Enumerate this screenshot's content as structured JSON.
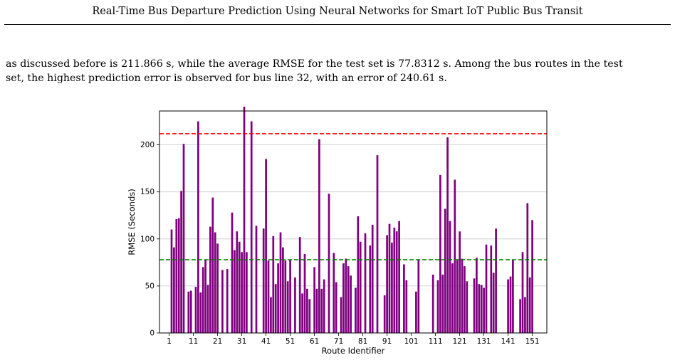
{
  "header": {
    "title": "Real-Time Bus Departure Prediction Using Neural Networks for Smart IoT Public Bus Transit"
  },
  "paragraph": {
    "line1": "as discussed before is 211.866 s, while the average RMSE for the test set is 77.8312 s. Among the bus routes in the test",
    "line2": "set, the highest prediction error is observed for bus line 32, with an error of 240.61 s."
  },
  "chart_data": {
    "type": "bar",
    "xlabel": "Route Identifier",
    "ylabel": "RMSE (Seconds)",
    "xlim": [
      -3,
      157
    ],
    "ylim": [
      0,
      236
    ],
    "xticks": [
      1,
      11,
      21,
      31,
      41,
      51,
      61,
      71,
      81,
      91,
      101,
      111,
      121,
      131,
      141,
      151
    ],
    "yticks": [
      0,
      50,
      100,
      150,
      200
    ],
    "grid": "horizontal",
    "bar_color": "#800080",
    "reference_lines": [
      {
        "value": 211.866,
        "color": "#ff0000",
        "style": "dashed"
      },
      {
        "value": 77.8312,
        "color": "#008000",
        "style": "dashed"
      }
    ],
    "bars": [
      {
        "x": 2,
        "y": 110
      },
      {
        "x": 3,
        "y": 91
      },
      {
        "x": 4,
        "y": 121
      },
      {
        "x": 5,
        "y": 122
      },
      {
        "x": 6,
        "y": 151
      },
      {
        "x": 7,
        "y": 201
      },
      {
        "x": 9,
        "y": 44
      },
      {
        "x": 10,
        "y": 45
      },
      {
        "x": 12,
        "y": 49
      },
      {
        "x": 13,
        "y": 225
      },
      {
        "x": 14,
        "y": 43
      },
      {
        "x": 15,
        "y": 70
      },
      {
        "x": 16,
        "y": 78
      },
      {
        "x": 17,
        "y": 51
      },
      {
        "x": 18,
        "y": 113
      },
      {
        "x": 19,
        "y": 144
      },
      {
        "x": 20,
        "y": 107
      },
      {
        "x": 21,
        "y": 95
      },
      {
        "x": 23,
        "y": 67
      },
      {
        "x": 25,
        "y": 68
      },
      {
        "x": 27,
        "y": 128
      },
      {
        "x": 28,
        "y": 88
      },
      {
        "x": 29,
        "y": 108
      },
      {
        "x": 30,
        "y": 97
      },
      {
        "x": 31,
        "y": 86
      },
      {
        "x": 32,
        "y": 240.61
      },
      {
        "x": 33,
        "y": 86
      },
      {
        "x": 35,
        "y": 225
      },
      {
        "x": 37,
        "y": 114
      },
      {
        "x": 40,
        "y": 111
      },
      {
        "x": 41,
        "y": 185
      },
      {
        "x": 42,
        "y": 77
      },
      {
        "x": 43,
        "y": 38
      },
      {
        "x": 44,
        "y": 103
      },
      {
        "x": 45,
        "y": 52
      },
      {
        "x": 46,
        "y": 74
      },
      {
        "x": 47,
        "y": 107
      },
      {
        "x": 48,
        "y": 91
      },
      {
        "x": 49,
        "y": 77
      },
      {
        "x": 50,
        "y": 55
      },
      {
        "x": 51,
        "y": 78
      },
      {
        "x": 53,
        "y": 59
      },
      {
        "x": 55,
        "y": 102
      },
      {
        "x": 56,
        "y": 42
      },
      {
        "x": 57,
        "y": 84
      },
      {
        "x": 58,
        "y": 47
      },
      {
        "x": 59,
        "y": 36
      },
      {
        "x": 61,
        "y": 70
      },
      {
        "x": 62,
        "y": 47
      },
      {
        "x": 63,
        "y": 206
      },
      {
        "x": 64,
        "y": 47
      },
      {
        "x": 65,
        "y": 57
      },
      {
        "x": 67,
        "y": 148
      },
      {
        "x": 69,
        "y": 85
      },
      {
        "x": 70,
        "y": 54
      },
      {
        "x": 72,
        "y": 38
      },
      {
        "x": 73,
        "y": 74
      },
      {
        "x": 74,
        "y": 79
      },
      {
        "x": 75,
        "y": 71
      },
      {
        "x": 76,
        "y": 61
      },
      {
        "x": 78,
        "y": 48
      },
      {
        "x": 79,
        "y": 124
      },
      {
        "x": 80,
        "y": 97
      },
      {
        "x": 82,
        "y": 106
      },
      {
        "x": 84,
        "y": 93
      },
      {
        "x": 85,
        "y": 115
      },
      {
        "x": 87,
        "y": 189
      },
      {
        "x": 90,
        "y": 40
      },
      {
        "x": 91,
        "y": 104
      },
      {
        "x": 92,
        "y": 116
      },
      {
        "x": 93,
        "y": 96
      },
      {
        "x": 94,
        "y": 112
      },
      {
        "x": 95,
        "y": 108
      },
      {
        "x": 96,
        "y": 119
      },
      {
        "x": 98,
        "y": 73
      },
      {
        "x": 99,
        "y": 56
      },
      {
        "x": 103,
        "y": 44
      },
      {
        "x": 104,
        "y": 78
      },
      {
        "x": 110,
        "y": 62
      },
      {
        "x": 112,
        "y": 56
      },
      {
        "x": 113,
        "y": 168
      },
      {
        "x": 114,
        "y": 62
      },
      {
        "x": 115,
        "y": 132
      },
      {
        "x": 116,
        "y": 208
      },
      {
        "x": 117,
        "y": 119
      },
      {
        "x": 118,
        "y": 74
      },
      {
        "x": 119,
        "y": 163
      },
      {
        "x": 120,
        "y": 78
      },
      {
        "x": 121,
        "y": 108
      },
      {
        "x": 122,
        "y": 79
      },
      {
        "x": 123,
        "y": 71
      },
      {
        "x": 124,
        "y": 55
      },
      {
        "x": 127,
        "y": 58
      },
      {
        "x": 128,
        "y": 80
      },
      {
        "x": 129,
        "y": 52
      },
      {
        "x": 130,
        "y": 51
      },
      {
        "x": 131,
        "y": 48
      },
      {
        "x": 132,
        "y": 94
      },
      {
        "x": 134,
        "y": 93
      },
      {
        "x": 135,
        "y": 64
      },
      {
        "x": 136,
        "y": 111
      },
      {
        "x": 141,
        "y": 57
      },
      {
        "x": 142,
        "y": 60
      },
      {
        "x": 143,
        "y": 78
      },
      {
        "x": 146,
        "y": 36
      },
      {
        "x": 147,
        "y": 86
      },
      {
        "x": 148,
        "y": 38
      },
      {
        "x": 149,
        "y": 138
      },
      {
        "x": 150,
        "y": 59
      },
      {
        "x": 151,
        "y": 120
      }
    ]
  }
}
